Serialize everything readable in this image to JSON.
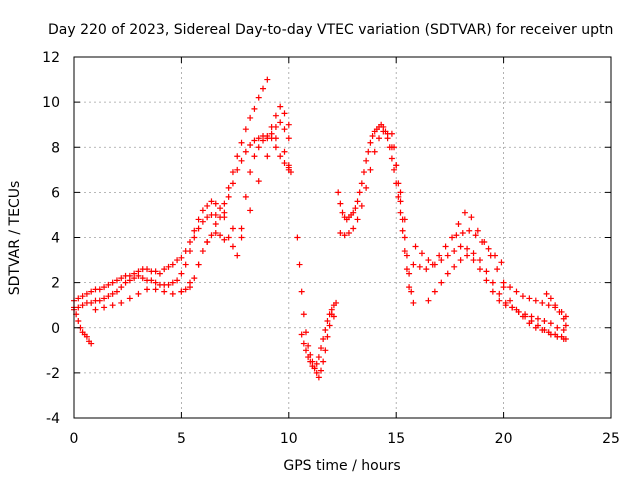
{
  "chart_data": {
    "type": "scatter",
    "title": "Day 220 of 2023, Sidereal Day-to-day VTEC variation (SDTVAR) for receiver uptn",
    "xlabel": "GPS time / hours",
    "ylabel": "SDTVAR / TECUs",
    "xlim": [
      0,
      25
    ],
    "ylim": [
      -4,
      12
    ],
    "xticks": [
      0,
      5,
      10,
      15,
      20,
      25
    ],
    "yticks": [
      -4,
      -2,
      0,
      2,
      4,
      6,
      8,
      10,
      12
    ],
    "grid": true,
    "marker": "plus",
    "color": "#ff0000",
    "series": [
      {
        "x": [
          0.0,
          0.2,
          0.4,
          0.6,
          0.8,
          1.0,
          1.2,
          1.4,
          1.6,
          1.8,
          2.0,
          2.2,
          2.4,
          2.6,
          2.8,
          3.0,
          3.2,
          3.4,
          3.6,
          3.8,
          4.0,
          4.2,
          4.4,
          4.6,
          4.8,
          5.0,
          5.2,
          5.4,
          5.6,
          5.8,
          6.0,
          6.2,
          6.4,
          6.6,
          6.8,
          7.0,
          7.2,
          7.4,
          7.6,
          7.8,
          8.0,
          8.2,
          8.4,
          8.6,
          8.8,
          9.0,
          9.2,
          9.4,
          9.6,
          9.8,
          10.0
        ],
        "y": [
          0.8,
          0.9,
          1.0,
          1.1,
          1.1,
          1.2,
          1.2,
          1.3,
          1.4,
          1.5,
          1.6,
          1.8,
          2.0,
          2.1,
          2.2,
          2.3,
          2.2,
          2.1,
          2.1,
          2.0,
          1.9,
          1.9,
          1.9,
          2.0,
          2.1,
          2.4,
          2.8,
          3.4,
          4.0,
          4.4,
          4.7,
          4.9,
          5.0,
          5.0,
          4.9,
          5.1,
          5.8,
          6.4,
          7.0,
          7.4,
          7.8,
          8.1,
          8.3,
          8.4,
          8.5,
          8.4,
          8.6,
          8.9,
          9.1,
          8.8,
          8.4
        ]
      },
      {
        "x": [
          0.0,
          0.2,
          0.4,
          0.6,
          0.8,
          1.0,
          1.2,
          1.4,
          1.6,
          1.8,
          2.0,
          2.2,
          2.4,
          2.6,
          2.8,
          3.0,
          3.2,
          3.4,
          3.6,
          3.8,
          4.0,
          4.2,
          4.4,
          4.6,
          4.8,
          5.0,
          5.2,
          5.4,
          5.6,
          5.8,
          6.0,
          6.2,
          6.4,
          6.6,
          6.8,
          7.0,
          7.2,
          7.4,
          7.6,
          7.8,
          8.0,
          8.2,
          8.4,
          8.6,
          8.8,
          9.0
        ],
        "y": [
          1.2,
          1.3,
          1.4,
          1.5,
          1.6,
          1.7,
          1.7,
          1.8,
          1.9,
          2.0,
          2.1,
          2.2,
          2.3,
          2.3,
          2.4,
          2.5,
          2.6,
          2.6,
          2.5,
          2.5,
          2.4,
          2.6,
          2.7,
          2.8,
          3.0,
          3.1,
          3.4,
          3.8,
          4.3,
          4.8,
          5.2,
          5.4,
          5.6,
          5.5,
          5.3,
          5.5,
          6.2,
          6.9,
          7.6,
          8.2,
          8.8,
          9.3,
          9.7,
          10.2,
          10.6,
          11.0
        ]
      },
      {
        "x": [
          0.0,
          0.1,
          0.2,
          0.3,
          0.4,
          0.5,
          0.6,
          0.7,
          0.8
        ],
        "y": [
          0.9,
          0.6,
          0.3,
          0.0,
          -0.2,
          -0.3,
          -0.4,
          -0.6,
          -0.7
        ]
      },
      {
        "x": [
          1.0,
          1.4,
          1.8,
          2.2,
          2.6,
          3.0,
          3.4,
          3.8,
          4.2,
          4.6,
          5.0,
          5.4,
          5.8,
          6.2,
          6.6,
          7.0,
          7.4,
          7.8,
          8.2,
          8.6,
          9.0,
          9.4,
          9.8,
          10.0
        ],
        "y": [
          0.8,
          0.9,
          1.0,
          1.1,
          1.3,
          1.5,
          1.7,
          1.7,
          1.6,
          1.5,
          1.6,
          2.0,
          2.8,
          3.8,
          4.6,
          4.9,
          4.4,
          4.0,
          5.2,
          6.5,
          7.6,
          8.4,
          7.8,
          7.0
        ]
      },
      {
        "x": [
          5.0,
          5.2,
          5.4,
          5.6,
          5.8,
          6.0,
          6.2,
          6.4,
          6.6,
          6.8,
          7.0,
          7.2,
          7.4,
          7.6,
          7.8,
          8.0,
          8.2,
          8.4,
          8.6,
          8.8,
          9.0,
          9.2,
          9.4,
          9.6,
          9.8,
          10.0
        ],
        "y": [
          1.6,
          1.7,
          1.8,
          2.2,
          2.8,
          3.4,
          3.8,
          4.1,
          4.2,
          4.1,
          3.9,
          4.0,
          3.6,
          3.2,
          4.4,
          5.8,
          6.9,
          7.6,
          8.0,
          8.3,
          8.5,
          8.9,
          9.4,
          9.8,
          9.5,
          9.0
        ]
      },
      {
        "x": [
          9.2,
          9.4,
          9.6,
          9.8,
          10.0,
          10.0,
          10.1
        ],
        "y": [
          8.4,
          8.0,
          7.6,
          7.3,
          7.1,
          7.2,
          6.9
        ]
      },
      {
        "x": [
          10.4,
          10.5,
          10.6,
          10.7,
          10.8,
          10.9,
          11.0,
          11.1,
          11.2,
          11.3,
          11.4,
          11.5,
          11.6,
          11.7,
          11.8,
          11.9,
          12.0,
          12.1,
          12.2
        ],
        "y": [
          4.0,
          2.8,
          1.6,
          0.6,
          -0.2,
          -0.8,
          -1.2,
          -1.5,
          -1.8,
          -2.0,
          -2.2,
          -1.9,
          -1.5,
          -1.0,
          -0.4,
          0.1,
          0.6,
          1.0,
          1.1
        ]
      },
      {
        "x": [
          10.6,
          10.7,
          10.8,
          10.9,
          11.0,
          11.1,
          11.2,
          11.3,
          11.4,
          11.5,
          11.6,
          11.7,
          11.8,
          11.9,
          12.0,
          12.1
        ],
        "y": [
          -0.3,
          -0.7,
          -1.0,
          -1.3,
          -1.5,
          -1.7,
          -1.8,
          -1.6,
          -1.3,
          -0.9,
          -0.5,
          -0.1,
          0.3,
          0.6,
          0.8,
          0.5
        ]
      },
      {
        "x": [
          12.3,
          12.4,
          12.5,
          12.6,
          12.7,
          12.8,
          12.9,
          13.0,
          13.1,
          13.2,
          13.3,
          13.4,
          13.5,
          13.6,
          13.7,
          13.8,
          13.9,
          14.0,
          14.1,
          14.2,
          14.3,
          14.4,
          14.5,
          14.6,
          14.7,
          14.8,
          14.9,
          15.0,
          15.1,
          15.2,
          15.3,
          15.4,
          15.5,
          15.6
        ],
        "y": [
          6.0,
          5.5,
          5.1,
          4.9,
          4.8,
          4.9,
          5.0,
          5.1,
          5.3,
          5.6,
          6.0,
          6.4,
          6.9,
          7.4,
          7.8,
          8.2,
          8.5,
          8.7,
          8.8,
          8.9,
          9.0,
          8.9,
          8.7,
          8.4,
          8.0,
          7.5,
          7.0,
          6.4,
          5.8,
          5.1,
          4.3,
          3.4,
          2.6,
          1.8
        ]
      },
      {
        "x": [
          12.4,
          12.6,
          12.8,
          13.0,
          13.2,
          13.4,
          13.6,
          13.8,
          14.0,
          14.2,
          14.4,
          14.6,
          14.8,
          15.0,
          15.2,
          15.4
        ],
        "y": [
          4.2,
          4.1,
          4.2,
          4.4,
          4.8,
          5.4,
          6.2,
          7.0,
          7.8,
          8.4,
          8.7,
          8.6,
          8.0,
          7.2,
          6.0,
          4.8
        ]
      },
      {
        "x": [
          14.8,
          14.9,
          15.0,
          15.1,
          15.2,
          15.3,
          15.4,
          15.5,
          15.6,
          15.7,
          15.8
        ],
        "y": [
          8.6,
          8.0,
          7.2,
          6.4,
          5.6,
          4.8,
          4.0,
          3.2,
          2.4,
          1.6,
          1.1
        ]
      },
      {
        "x": [
          15.8,
          16.1,
          16.4,
          16.7,
          17.0,
          17.3,
          17.6,
          17.9,
          18.2,
          18.5,
          18.8,
          19.1,
          19.4,
          19.7,
          20.0,
          20.3,
          20.6,
          20.9,
          21.2,
          21.5,
          21.8,
          22.1,
          22.4,
          22.7,
          22.9
        ],
        "y": [
          2.8,
          2.7,
          2.6,
          2.8,
          3.2,
          3.6,
          4.0,
          4.6,
          5.1,
          4.9,
          4.3,
          3.8,
          3.2,
          2.6,
          1.8,
          1.2,
          0.8,
          0.5,
          0.2,
          0.0,
          -0.1,
          -0.2,
          -0.3,
          -0.4,
          -0.5
        ]
      },
      {
        "x": [
          15.9,
          16.2,
          16.5,
          16.8,
          17.1,
          17.4,
          17.7,
          18.0,
          18.3,
          18.6,
          18.9,
          19.2,
          19.5,
          19.8,
          20.1,
          20.4,
          20.7,
          21.0,
          21.3,
          21.6,
          21.9,
          22.2,
          22.5,
          22.8
        ],
        "y": [
          3.6,
          3.3,
          3.0,
          2.8,
          3.0,
          3.2,
          3.4,
          3.6,
          3.5,
          3.3,
          3.0,
          2.5,
          2.0,
          1.5,
          1.1,
          0.9,
          0.7,
          0.6,
          0.5,
          0.4,
          0.3,
          0.2,
          0.0,
          -0.1
        ]
      },
      {
        "x": [
          16.5,
          16.8,
          17.1,
          17.4,
          17.7,
          18.0,
          18.3,
          18.6,
          18.9,
          19.2,
          19.5,
          19.8,
          20.1,
          20.4,
          20.7,
          21.0,
          21.3,
          21.6,
          21.9,
          22.2,
          22.5,
          22.8
        ],
        "y": [
          1.2,
          1.6,
          2.0,
          2.4,
          2.7,
          3.0,
          3.2,
          3.0,
          2.6,
          2.1,
          1.6,
          1.2,
          1.0,
          0.9,
          0.7,
          0.5,
          0.3,
          0.1,
          -0.1,
          -0.3,
          -0.4,
          -0.5
        ]
      },
      {
        "x": [
          17.8,
          18.1,
          18.4,
          18.7,
          19.0,
          19.3,
          19.6,
          19.9
        ],
        "y": [
          4.1,
          4.2,
          4.3,
          4.1,
          3.8,
          3.5,
          3.2,
          2.9
        ]
      },
      {
        "x": [
          20.0,
          20.3,
          20.6,
          20.9,
          21.2,
          21.5,
          21.8,
          22.1,
          22.4,
          22.7,
          22.9
        ],
        "y": [
          2.0,
          1.8,
          1.6,
          1.4,
          1.3,
          1.2,
          1.1,
          1.0,
          0.9,
          0.7,
          0.5
        ]
      },
      {
        "x": [
          22.0,
          22.2,
          22.4,
          22.6,
          22.8,
          22.9
        ],
        "y": [
          1.5,
          1.3,
          1.0,
          0.7,
          0.4,
          0.1
        ]
      }
    ]
  }
}
